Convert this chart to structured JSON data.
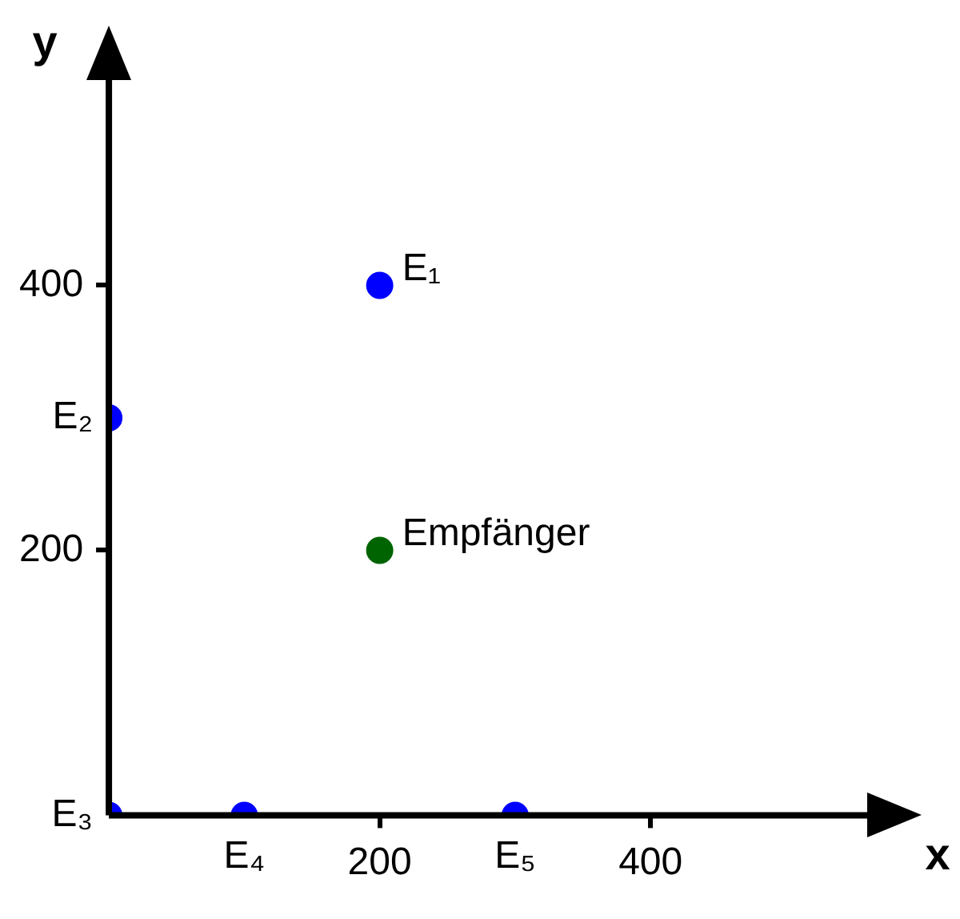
{
  "chart_data": {
    "type": "scatter",
    "xlabel": "x",
    "ylabel": "y",
    "xlim": [
      0,
      560
    ],
    "ylim": [
      0,
      555
    ],
    "xticks": [
      200,
      400
    ],
    "yticks": [
      200,
      400
    ],
    "marker": "circle",
    "series": [
      {
        "color": "#0000ff",
        "x": [
          200,
          0,
          0,
          100,
          300
        ],
        "values": [
          400,
          300,
          0,
          0,
          0
        ]
      },
      {
        "color": "#006400",
        "x": [
          200
        ],
        "values": [
          200
        ]
      }
    ],
    "annotations": [
      {
        "text": "E₁",
        "x": 200,
        "y": 400
      },
      {
        "text": "E₂",
        "x": 0,
        "y": 300
      },
      {
        "text": "E₃",
        "x": 0,
        "y": 0
      },
      {
        "text": "E₄",
        "x": 100,
        "y": 0
      },
      {
        "text": "E₅",
        "x": 300,
        "y": 0
      },
      {
        "text": "Empfänger",
        "x": 200,
        "y": 200
      }
    ]
  }
}
